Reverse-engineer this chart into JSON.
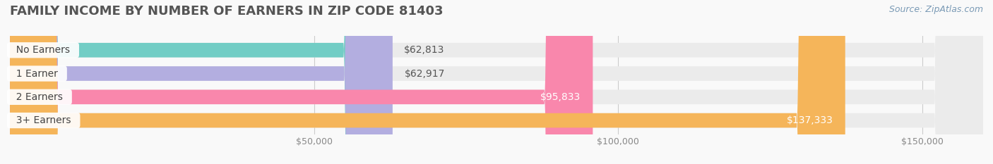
{
  "title": "FAMILY INCOME BY NUMBER OF EARNERS IN ZIP CODE 81403",
  "source": "Source: ZipAtlas.com",
  "categories": [
    "No Earners",
    "1 Earner",
    "2 Earners",
    "3+ Earners"
  ],
  "values": [
    62813,
    62917,
    95833,
    137333
  ],
  "bar_colors": [
    "#72cdc5",
    "#b3aee0",
    "#f987ac",
    "#f5b55a"
  ],
  "bar_bg_color": "#ebebeb",
  "label_values": [
    "$62,813",
    "$62,917",
    "$95,833",
    "$137,333"
  ],
  "xlim": [
    0,
    160000
  ],
  "xticks": [
    50000,
    100000,
    150000
  ],
  "xtick_labels": [
    "$50,000",
    "$100,000",
    "$150,000"
  ],
  "background_color": "#f9f9f9",
  "title_color": "#555555",
  "title_fontsize": 13,
  "bar_label_fontsize": 10,
  "category_fontsize": 10,
  "source_fontsize": 9,
  "source_color": "#7a9ab5"
}
